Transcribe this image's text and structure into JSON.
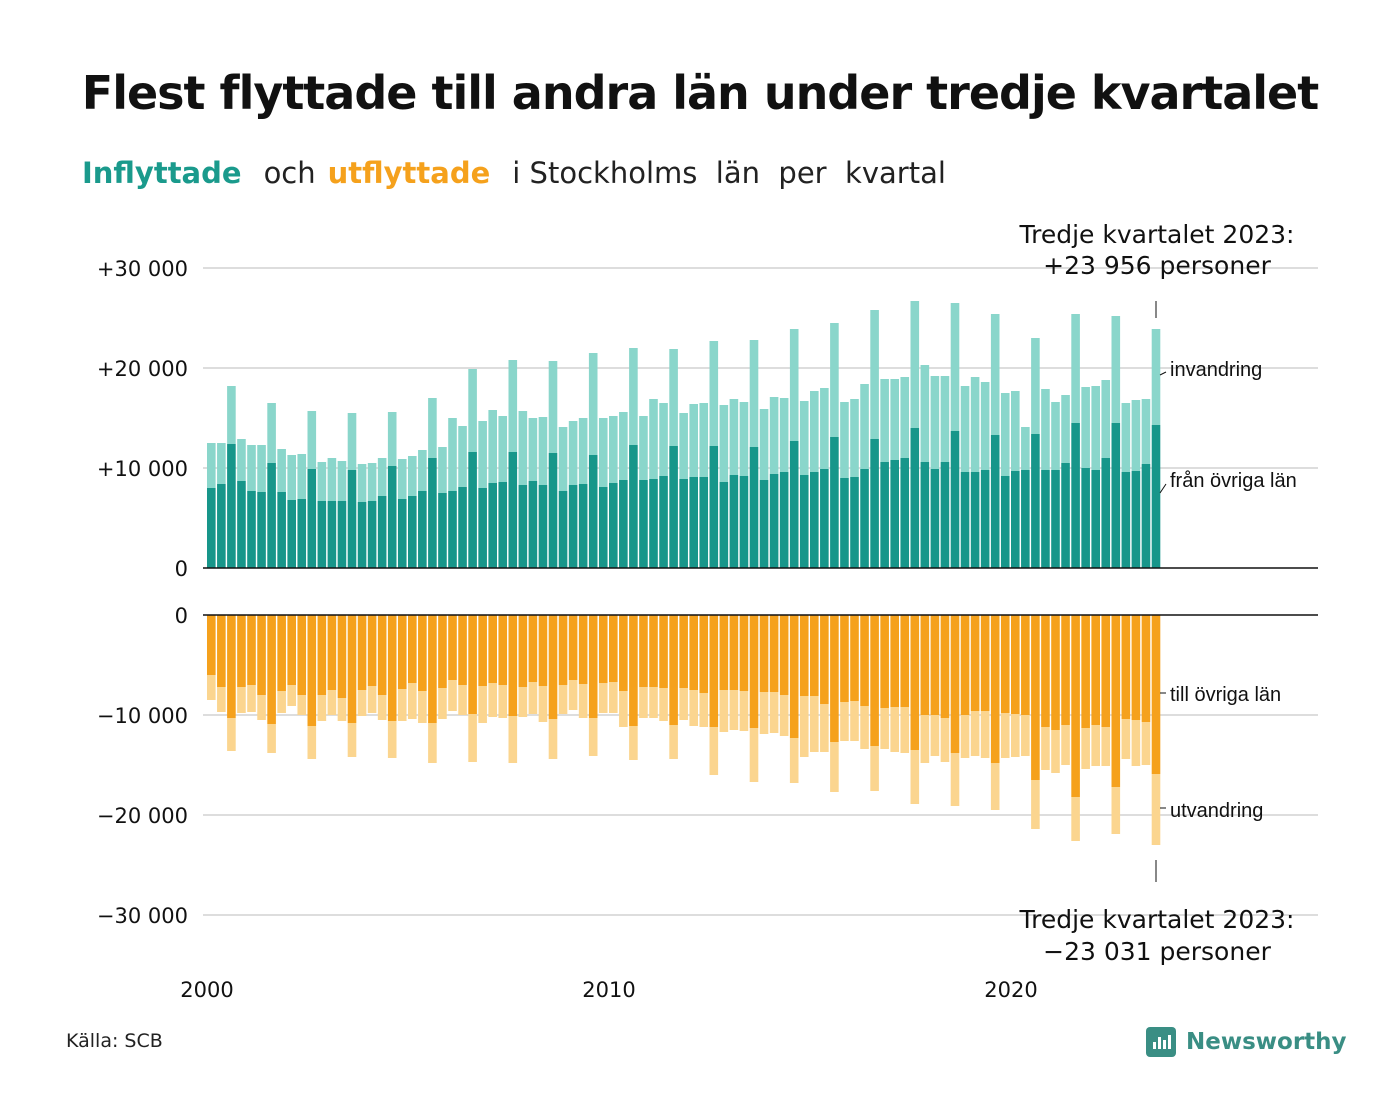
{
  "title": "Flest flyttade till andra län under tredje kvartalet",
  "subtitle": {
    "in_word": "Inflyttade",
    "and_word": "och",
    "out_word": "utflyttade",
    "rest": "i Stockholms  län  per  kvartal"
  },
  "source": "Källa: SCB",
  "logo_text": "Newsworthy",
  "colors": {
    "in_dark": "#17968a",
    "in_light": "#8ad6cb",
    "out_dark": "#f5a11c",
    "out_light": "#fbd58f",
    "grid": "#dddddd",
    "axis": "#111111"
  },
  "chart_data": {
    "type": "bar",
    "layout": "diverging stacked columns, two panels",
    "x_start": "2000 Q1",
    "x_end": "2023 Q3",
    "x_ticks": [
      "2000",
      "2010",
      "2020"
    ],
    "top_panel": {
      "y_ticks": [
        "+30 000",
        "+20 000",
        "+10 000",
        "0"
      ],
      "ylim": [
        0,
        30000
      ],
      "annotation_lines": [
        "Tredje kvartalet 2023:",
        "+23 956 personer"
      ],
      "series_labels": [
        "invandring",
        "från övriga län"
      ],
      "from_other_counties": [
        8000,
        8400,
        12400,
        8700,
        7700,
        7600,
        10500,
        7600,
        6800,
        6900,
        9900,
        6700,
        6700,
        6700,
        9800,
        6600,
        6700,
        7200,
        10200,
        6900,
        7200,
        7700,
        11000,
        7500,
        7700,
        8100,
        11600,
        8000,
        8500,
        8600,
        11600,
        8300,
        8700,
        8300,
        11500,
        7700,
        8300,
        8400,
        11300,
        8100,
        8500,
        8800,
        12300,
        8800,
        8900,
        9200,
        12200,
        8900,
        9100,
        9100,
        12200,
        8600,
        9300,
        9200,
        12100,
        8800,
        9400,
        9600,
        12700,
        9300,
        9600,
        9900,
        13100,
        9000,
        9100,
        9900,
        12900,
        10600,
        10800,
        11000,
        14000,
        10600,
        9900,
        10600,
        13700,
        9600,
        9600,
        9800,
        13300,
        9200,
        9700,
        9800,
        13400,
        9800,
        9800,
        10500,
        14500,
        10000,
        9800,
        11000,
        14500,
        9600,
        9700,
        10400,
        14300
      ],
      "immigration": [
        4500,
        4100,
        5800,
        4200,
        4600,
        4700,
        6000,
        4300,
        4500,
        4500,
        5800,
        3900,
        4300,
        4000,
        5700,
        3800,
        3800,
        3800,
        5400,
        4000,
        4000,
        4100,
        6000,
        4600,
        7300,
        6100,
        8300,
        6700,
        7300,
        6600,
        9200,
        7400,
        6300,
        6800,
        9200,
        6400,
        6400,
        6600,
        10200,
        6900,
        6700,
        6800,
        9700,
        6400,
        8000,
        7300,
        9700,
        6600,
        7300,
        7400,
        10500,
        7700,
        7600,
        7400,
        10700,
        7100,
        7700,
        7400,
        11200,
        7400,
        8100,
        8100,
        11400,
        7600,
        7800,
        8500,
        12900,
        8300,
        8100,
        8100,
        12700,
        9700,
        9300,
        8600,
        12800,
        8600,
        9500,
        8800,
        12100,
        8300,
        8000,
        4300,
        9600,
        8100,
        6800,
        6800,
        10900,
        8100,
        8400,
        7800,
        10700,
        6900,
        7100,
        6500,
        9600
      ]
    },
    "bottom_panel": {
      "y_ticks": [
        "0",
        "−10 000",
        "−20 000",
        "−30 000"
      ],
      "ylim": [
        -30000,
        0
      ],
      "annotation_lines": [
        "Tredje kvartalet 2023:",
        "−23 031 personer"
      ],
      "series_labels": [
        "till övriga län",
        "utvandring"
      ],
      "to_other_counties": [
        -6000,
        -7200,
        -10300,
        -7200,
        -7000,
        -8000,
        -10900,
        -7600,
        -7000,
        -8000,
        -11100,
        -8000,
        -7500,
        -8300,
        -10800,
        -7500,
        -7100,
        -8000,
        -10600,
        -7400,
        -6800,
        -7600,
        -10800,
        -7300,
        -6500,
        -7000,
        -9900,
        -7100,
        -6800,
        -7000,
        -10100,
        -7200,
        -6700,
        -7100,
        -10400,
        -7000,
        -6500,
        -6900,
        -10300,
        -6800,
        -6700,
        -7600,
        -11100,
        -7200,
        -7200,
        -7300,
        -11000,
        -7300,
        -7500,
        -7800,
        -11200,
        -7500,
        -7500,
        -7600,
        -11300,
        -7700,
        -7700,
        -8000,
        -12300,
        -8100,
        -8100,
        -8900,
        -12700,
        -8700,
        -8600,
        -9100,
        -13100,
        -9300,
        -9200,
        -9200,
        -13500,
        -10000,
        -10000,
        -10300,
        -13800,
        -10000,
        -9600,
        -9600,
        -14800,
        -9800,
        -9900,
        -10000,
        -16500,
        -11200,
        -11500,
        -11000,
        -18200,
        -11300,
        -11000,
        -11200,
        -17200,
        -10400,
        -10500,
        -10700,
        -15900
      ],
      "emigration": [
        -2500,
        -2500,
        -3300,
        -2600,
        -2700,
        -2500,
        -2900,
        -2200,
        -2100,
        -2000,
        -3300,
        -2600,
        -2500,
        -2300,
        -3400,
        -2600,
        -2700,
        -2500,
        -3700,
        -3200,
        -3600,
        -3200,
        -4000,
        -3100,
        -3100,
        -3000,
        -4800,
        -3700,
        -3400,
        -3300,
        -4700,
        -3000,
        -3200,
        -3600,
        -4000,
        -2900,
        -3000,
        -3400,
        -3800,
        -3000,
        -3100,
        -3600,
        -3400,
        -3100,
        -3100,
        -3300,
        -3400,
        -3200,
        -3600,
        -3400,
        -4800,
        -4200,
        -4000,
        -4000,
        -5400,
        -4200,
        -4100,
        -4100,
        -4500,
        -6100,
        -5600,
        -4800,
        -5000,
        -3900,
        -4000,
        -4300,
        -4500,
        -4100,
        -4500,
        -4600,
        -5400,
        -4800,
        -4100,
        -4400,
        -5300,
        -4300,
        -4500,
        -4700,
        -4700,
        -4500,
        -4300,
        -4100,
        -4900,
        -4300,
        -4300,
        -4000,
        -4400,
        -4100,
        -4100,
        -3900,
        -4700,
        -4000,
        -4600,
        -4300,
        -7100
      ]
    }
  }
}
